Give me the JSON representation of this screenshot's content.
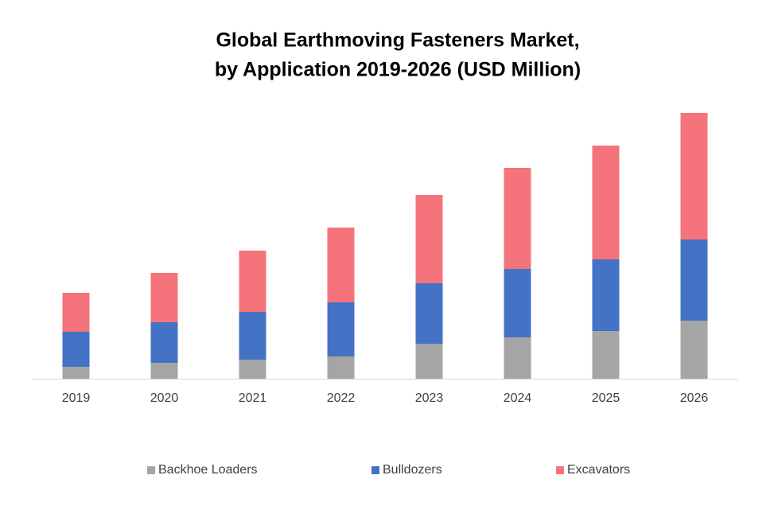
{
  "chart_data": {
    "type": "stacked-bar",
    "title": [
      "Global Earthmoving Fasteners Market,",
      "by Application 2019-2026 (USD Million)"
    ],
    "categories": [
      "2019",
      "2020",
      "2021",
      "2022",
      "2023",
      "2024",
      "2025",
      "2026"
    ],
    "series": [
      {
        "name": "Backhoe Loaders",
        "color": "#a5a5a5",
        "values": [
          15,
          20,
          24,
          28,
          44,
          52,
          60,
          73
        ]
      },
      {
        "name": "Bulldozers",
        "color": "#4472c4",
        "values": [
          44,
          51,
          60,
          68,
          76,
          86,
          90,
          102
        ]
      },
      {
        "name": "Excavators",
        "color": "#f5737b",
        "values": [
          49,
          62,
          77,
          94,
          111,
          127,
          143,
          159
        ]
      }
    ],
    "ylim": [
      0,
      346
    ],
    "legend": "bottom"
  }
}
